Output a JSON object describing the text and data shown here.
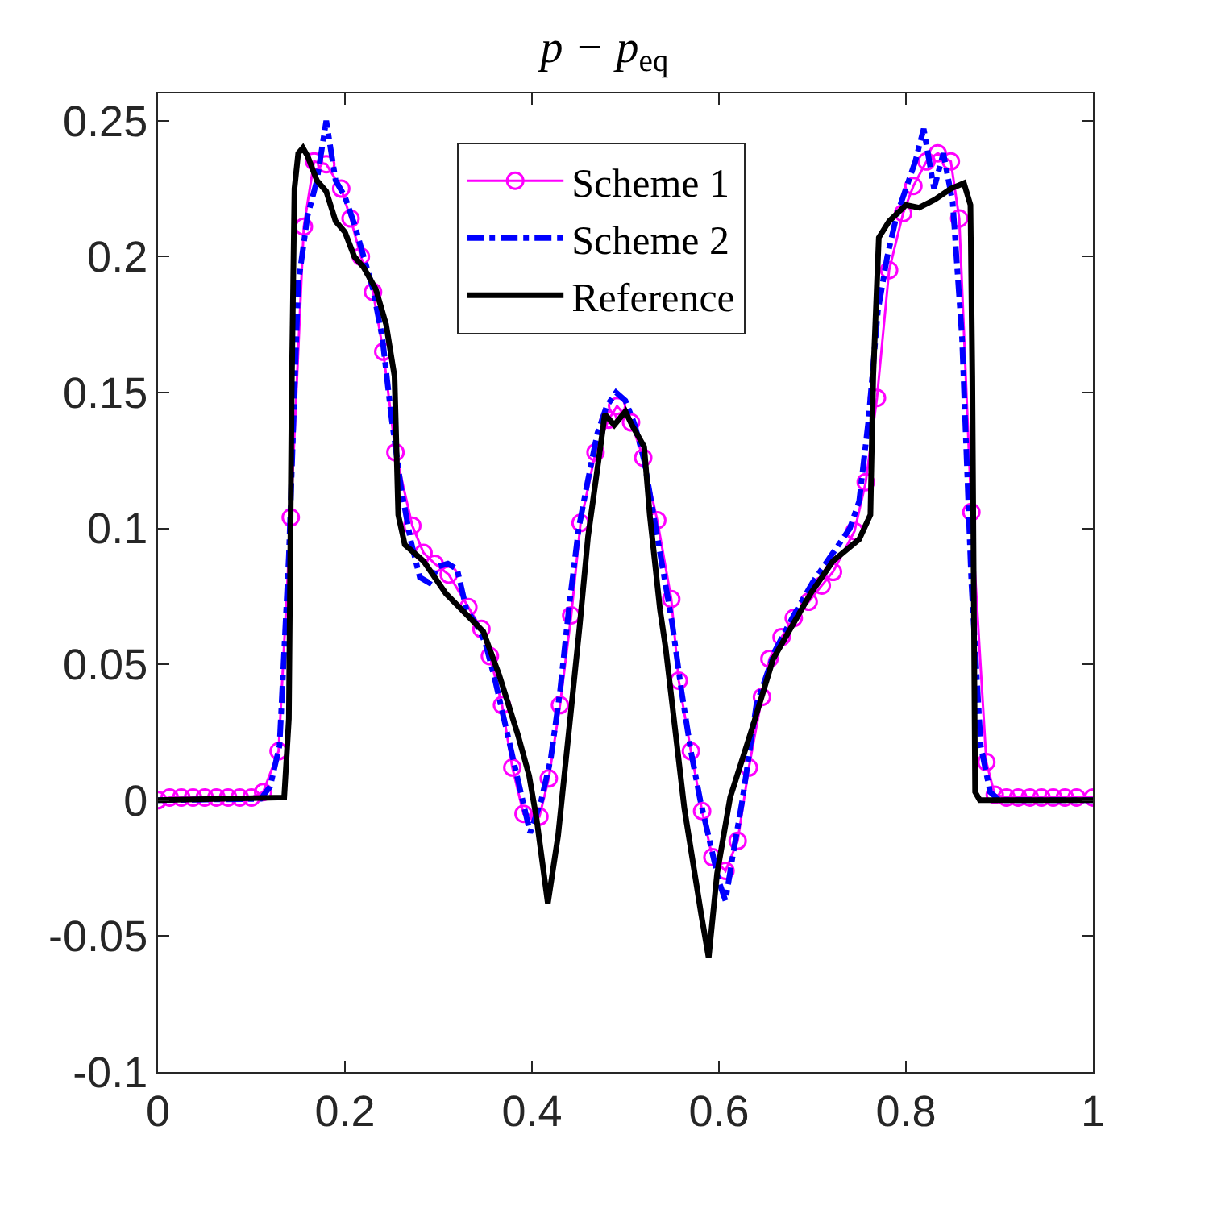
{
  "chart_data": {
    "type": "line",
    "title": "p − p$_{eq}$",
    "xlim": [
      0,
      1
    ],
    "xticks": [
      0,
      0.2,
      0.4,
      0.6,
      0.8,
      1
    ],
    "ylim": [
      -0.1,
      0.26
    ],
    "yticks": [
      -0.1,
      -0.05,
      0,
      0.05,
      0.1,
      0.15,
      0.2,
      0.25
    ],
    "legend": "top",
    "series": [
      {
        "name": "Scheme 1",
        "color": "#ff00ff",
        "marker": "circle",
        "line_style": "solid",
        "x": [
          0,
          0.0125,
          0.025,
          0.0375,
          0.05,
          0.0625,
          0.075,
          0.0875,
          0.1,
          0.1125,
          0.129,
          0.142,
          0.156,
          0.167,
          0.18,
          0.196,
          0.206,
          0.217,
          0.23,
          0.241,
          0.254,
          0.272,
          0.284,
          0.296,
          0.311,
          0.332,
          0.346,
          0.355,
          0.368,
          0.379,
          0.391,
          0.408,
          0.418,
          0.43,
          0.442,
          0.452,
          0.468,
          0.482,
          0.491,
          0.506,
          0.519,
          0.534,
          0.549,
          0.557,
          0.57,
          0.582,
          0.593,
          0.607,
          0.62,
          0.632,
          0.646,
          0.654,
          0.667,
          0.68,
          0.696,
          0.71,
          0.722,
          0.745,
          0.757,
          0.769,
          0.782,
          0.797,
          0.808,
          0.822,
          0.834,
          0.848,
          0.857,
          0.87,
          0.886,
          0.895,
          0.9075,
          0.92,
          0.9325,
          0.945,
          0.9575,
          0.97,
          0.9825,
          1
        ],
        "values": [
          0,
          0.001,
          0.001,
          0.001,
          0.001,
          0.001,
          0.001,
          0.001,
          0.001,
          0.003,
          0.018,
          0.104,
          0.211,
          0.235,
          0.234,
          0.225,
          0.214,
          0.2,
          0.187,
          0.165,
          0.128,
          0.101,
          0.091,
          0.087,
          0.083,
          0.071,
          0.063,
          0.053,
          0.035,
          0.012,
          -0.005,
          -0.006,
          0.008,
          0.035,
          0.068,
          0.102,
          0.128,
          0.14,
          0.145,
          0.139,
          0.126,
          0.103,
          0.074,
          0.044,
          0.018,
          -0.004,
          -0.021,
          -0.026,
          -0.015,
          0.012,
          0.038,
          0.052,
          0.06,
          0.067,
          0.073,
          0.079,
          0.084,
          0.099,
          0.117,
          0.148,
          0.195,
          0.216,
          0.226,
          0.235,
          0.238,
          0.235,
          0.214,
          0.106,
          0.014,
          0.002,
          0.001,
          0.001,
          0.001,
          0.001,
          0.001,
          0.001,
          0.001,
          0.001
        ]
      },
      {
        "name": "Scheme 2",
        "color": "#0000ff",
        "marker": "none",
        "line_style": "dashdot",
        "x": [
          0,
          0.11,
          0.12,
          0.13,
          0.14,
          0.15,
          0.16,
          0.17,
          0.18,
          0.19,
          0.2,
          0.21,
          0.22,
          0.23,
          0.24,
          0.25,
          0.26,
          0.27,
          0.28,
          0.29,
          0.3,
          0.31,
          0.32,
          0.33,
          0.34,
          0.35,
          0.36,
          0.37,
          0.38,
          0.39,
          0.398,
          0.41,
          0.42,
          0.43,
          0.44,
          0.45,
          0.46,
          0.47,
          0.48,
          0.49,
          0.5,
          0.51,
          0.52,
          0.53,
          0.54,
          0.55,
          0.56,
          0.57,
          0.58,
          0.59,
          0.6,
          0.607,
          0.615,
          0.625,
          0.64,
          0.66,
          0.68,
          0.7,
          0.72,
          0.74,
          0.75,
          0.76,
          0.77,
          0.78,
          0.79,
          0.8,
          0.81,
          0.819,
          0.83,
          0.84,
          0.85,
          0.86,
          0.87,
          0.88,
          0.89,
          0.9,
          1
        ],
        "values": [
          0,
          0.0005,
          0.005,
          0.02,
          0.09,
          0.19,
          0.215,
          0.228,
          0.25,
          0.228,
          0.222,
          0.212,
          0.2,
          0.188,
          0.17,
          0.14,
          0.115,
          0.096,
          0.082,
          0.08,
          0.086,
          0.087,
          0.085,
          0.07,
          0.065,
          0.058,
          0.045,
          0.03,
          0.015,
          0,
          -0.012,
          0,
          0.015,
          0.04,
          0.072,
          0.1,
          0.118,
          0.135,
          0.145,
          0.15,
          0.147,
          0.138,
          0.125,
          0.105,
          0.085,
          0.065,
          0.04,
          0.018,
          0,
          -0.015,
          -0.03,
          -0.037,
          -0.02,
          0,
          0.035,
          0.055,
          0.068,
          0.08,
          0.09,
          0.1,
          0.11,
          0.14,
          0.18,
          0.2,
          0.215,
          0.225,
          0.235,
          0.247,
          0.225,
          0.238,
          0.22,
          0.17,
          0.08,
          0.02,
          0.003,
          0,
          0
        ]
      },
      {
        "name": "Reference",
        "color": "#000000",
        "marker": "none",
        "line_style": "solid",
        "x": [
          0,
          0.135,
          0.14,
          0.143,
          0.146,
          0.15,
          0.155,
          0.16,
          0.17,
          0.18,
          0.19,
          0.2,
          0.21,
          0.22,
          0.233,
          0.244,
          0.253,
          0.257,
          0.264,
          0.284,
          0.308,
          0.348,
          0.365,
          0.385,
          0.397,
          0.405,
          0.417,
          0.428,
          0.44,
          0.451,
          0.46,
          0.478,
          0.488,
          0.5,
          0.507,
          0.52,
          0.526,
          0.537,
          0.543,
          0.563,
          0.581,
          0.589,
          0.598,
          0.612,
          0.636,
          0.658,
          0.698,
          0.722,
          0.75,
          0.762,
          0.765,
          0.771,
          0.782,
          0.8,
          0.814,
          0.831,
          0.848,
          0.862,
          0.869,
          0.871,
          0.874,
          0.879,
          1
        ],
        "values": [
          0,
          0.001,
          0.03,
          0.15,
          0.225,
          0.238,
          0.24,
          0.237,
          0.228,
          0.224,
          0.213,
          0.209,
          0.2,
          0.196,
          0.188,
          0.175,
          0.156,
          0.105,
          0.094,
          0.088,
          0.076,
          0.062,
          0.046,
          0.024,
          0.009,
          -0.007,
          -0.038,
          -0.013,
          0.027,
          0.064,
          0.097,
          0.142,
          0.138,
          0.143,
          0.138,
          0.13,
          0.105,
          0.07,
          0.056,
          -0.003,
          -0.042,
          -0.058,
          -0.027,
          0.001,
          0.027,
          0.052,
          0.076,
          0.088,
          0.096,
          0.105,
          0.156,
          0.207,
          0.213,
          0.219,
          0.218,
          0.221,
          0.225,
          0.227,
          0.219,
          0.156,
          0.003,
          0,
          0
        ]
      }
    ]
  }
}
